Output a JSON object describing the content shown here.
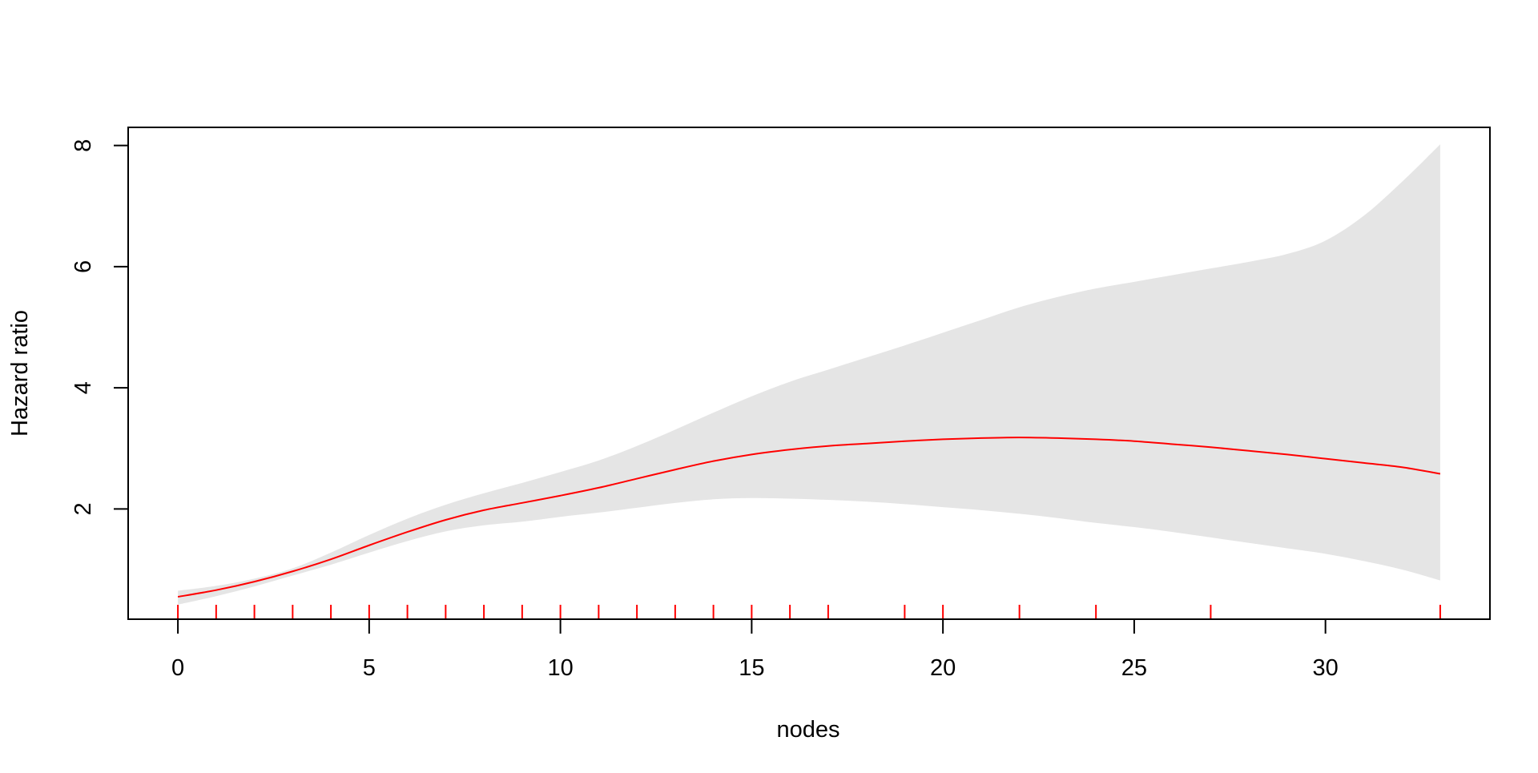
{
  "chart_data": {
    "type": "line",
    "title": "",
    "xlabel": "nodes",
    "ylabel": "Hazard ratio",
    "xlim": [
      -1.3,
      34.3
    ],
    "ylim": [
      0.18,
      8.3
    ],
    "x_ticks": [
      0,
      5,
      10,
      15,
      20,
      25,
      30
    ],
    "y_ticks": [
      2,
      4,
      6,
      8
    ],
    "grid": false,
    "legend": "none",
    "series": [
      {
        "role": "estimate",
        "color": "#ff0000",
        "points": [
          [
            0,
            0.55
          ],
          [
            1,
            0.66
          ],
          [
            2,
            0.8
          ],
          [
            3,
            0.97
          ],
          [
            4,
            1.17
          ],
          [
            5,
            1.4
          ],
          [
            6,
            1.62
          ],
          [
            7,
            1.82
          ],
          [
            8,
            1.98
          ],
          [
            9,
            2.1
          ],
          [
            10,
            2.22
          ],
          [
            11,
            2.35
          ],
          [
            12,
            2.5
          ],
          [
            13,
            2.65
          ],
          [
            14,
            2.79
          ],
          [
            15,
            2.9
          ],
          [
            16,
            2.98
          ],
          [
            17,
            3.04
          ],
          [
            18,
            3.08
          ],
          [
            19,
            3.12
          ],
          [
            20,
            3.15
          ],
          [
            21,
            3.17
          ],
          [
            22,
            3.18
          ],
          [
            23,
            3.17
          ],
          [
            24,
            3.15
          ],
          [
            25,
            3.12
          ],
          [
            26,
            3.07
          ],
          [
            27,
            3.02
          ],
          [
            28,
            2.96
          ],
          [
            29,
            2.9
          ],
          [
            30,
            2.83
          ],
          [
            31,
            2.76
          ],
          [
            32,
            2.69
          ],
          [
            33,
            2.58
          ]
        ]
      }
    ],
    "confidence_band": {
      "color": "#e5e5e5",
      "points": [
        [
          0,
          0.65,
          0.42
        ],
        [
          1,
          0.73,
          0.56
        ],
        [
          2,
          0.85,
          0.72
        ],
        [
          3,
          1.02,
          0.9
        ],
        [
          4,
          1.28,
          1.08
        ],
        [
          5,
          1.57,
          1.28
        ],
        [
          6,
          1.84,
          1.47
        ],
        [
          7,
          2.07,
          1.63
        ],
        [
          8,
          2.26,
          1.73
        ],
        [
          9,
          2.43,
          1.79
        ],
        [
          10,
          2.61,
          1.87
        ],
        [
          11,
          2.8,
          1.94
        ],
        [
          12,
          3.04,
          2.02
        ],
        [
          13,
          3.31,
          2.1
        ],
        [
          14,
          3.59,
          2.16
        ],
        [
          15,
          3.86,
          2.18
        ],
        [
          16,
          4.1,
          2.17
        ],
        [
          17,
          4.3,
          2.15
        ],
        [
          18,
          4.5,
          2.12
        ],
        [
          19,
          4.7,
          2.08
        ],
        [
          20,
          4.91,
          2.03
        ],
        [
          21,
          5.12,
          1.98
        ],
        [
          22,
          5.33,
          1.92
        ],
        [
          23,
          5.5,
          1.85
        ],
        [
          24,
          5.64,
          1.77
        ],
        [
          25,
          5.75,
          1.7
        ],
        [
          26,
          5.86,
          1.62
        ],
        [
          27,
          5.97,
          1.53
        ],
        [
          28,
          6.08,
          1.44
        ],
        [
          29,
          6.21,
          1.35
        ],
        [
          30,
          6.43,
          1.26
        ],
        [
          31,
          6.84,
          1.14
        ],
        [
          32,
          7.4,
          1.0
        ],
        [
          33,
          8.02,
          0.82
        ]
      ]
    },
    "rug": {
      "color": "#ff0000",
      "x": [
        0,
        1,
        2,
        3,
        4,
        5,
        6,
        7,
        8,
        9,
        10,
        11,
        12,
        13,
        14,
        15,
        16,
        17,
        19,
        20,
        22,
        24,
        27,
        33
      ]
    }
  }
}
